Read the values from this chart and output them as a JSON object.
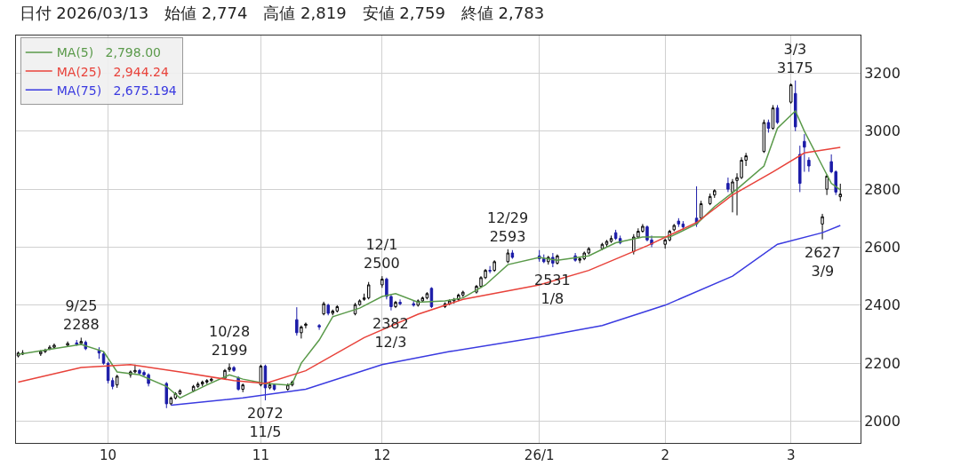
{
  "chart_data": {
    "type": "candlestick",
    "title": "日付 2026/03/13　始値 2,774　高値 2,819　安値 2,759　終値 2,783",
    "x": [
      "2025-09-11",
      "2025-09-12",
      "2025-09-16",
      "2025-09-17",
      "2025-09-18",
      "2025-09-19",
      "2025-09-22",
      "2025-09-24",
      "2025-09-25",
      "2025-09-26",
      "2025-09-29",
      "2025-09-30",
      "2025-10-01",
      "2025-10-02",
      "2025-10-03",
      "2025-10-06",
      "2025-10-07",
      "2025-10-08",
      "2025-10-09",
      "2025-10-10",
      "2025-10-14",
      "2025-10-15",
      "2025-10-16",
      "2025-10-17",
      "2025-10-20",
      "2025-10-21",
      "2025-10-22",
      "2025-10-23",
      "2025-10-24",
      "2025-10-27",
      "2025-10-28",
      "2025-10-29",
      "2025-10-30",
      "2025-10-31",
      "2025-11-04",
      "2025-11-05",
      "2025-11-06",
      "2025-11-07",
      "2025-11-10",
      "2025-11-11",
      "2025-11-12",
      "2025-11-13",
      "2025-11-14",
      "2025-11-17",
      "2025-11-18",
      "2025-11-19",
      "2025-11-20",
      "2025-11-21",
      "2025-11-25",
      "2025-11-26",
      "2025-11-27",
      "2025-11-28",
      "2025-12-01",
      "2025-12-02",
      "2025-12-03",
      "2025-12-04",
      "2025-12-05",
      "2025-12-08",
      "2025-12-09",
      "2025-12-10",
      "2025-12-11",
      "2025-12-12",
      "2025-12-15",
      "2025-12-16",
      "2025-12-17",
      "2025-12-18",
      "2025-12-19",
      "2025-12-22",
      "2025-12-23",
      "2025-12-24",
      "2025-12-25",
      "2025-12-26",
      "2025-12-29",
      "2025-12-30",
      "2026-01-05",
      "2026-01-06",
      "2026-01-07",
      "2026-01-08",
      "2026-01-09",
      "2026-01-13",
      "2026-01-14",
      "2026-01-15",
      "2026-01-16",
      "2026-01-19",
      "2026-01-20",
      "2026-01-21",
      "2026-01-22",
      "2026-01-23",
      "2026-01-26",
      "2026-01-27",
      "2026-01-28",
      "2026-01-29",
      "2026-01-30",
      "2026-02-02",
      "2026-02-03",
      "2026-02-04",
      "2026-02-05",
      "2026-02-06",
      "2026-02-09",
      "2026-02-10",
      "2026-02-12",
      "2026-02-13",
      "2026-02-16",
      "2026-02-17",
      "2026-02-18",
      "2026-02-19",
      "2026-02-20",
      "2026-02-24",
      "2026-02-25",
      "2026-02-26",
      "2026-02-27",
      "2026-03-02",
      "2026-03-03",
      "2026-03-04",
      "2026-03-05",
      "2026-03-06",
      "2026-03-09",
      "2026-03-10",
      "2026-03-11",
      "2026-03-12",
      "2026-03-13"
    ],
    "ohlc": [
      [
        2225,
        2240,
        2220,
        2235
      ],
      [
        2235,
        2245,
        2228,
        2232
      ],
      [
        2232,
        2245,
        2225,
        2240
      ],
      [
        2240,
        2250,
        2235,
        2245
      ],
      [
        2248,
        2262,
        2245,
        2255
      ],
      [
        2255,
        2268,
        2250,
        2262
      ],
      [
        2262,
        2275,
        2258,
        2268
      ],
      [
        2270,
        2280,
        2260,
        2265
      ],
      [
        2268,
        2288,
        2262,
        2275
      ],
      [
        2272,
        2278,
        2245,
        2250
      ],
      [
        2245,
        2255,
        2215,
        2235
      ],
      [
        2232,
        2240,
        2195,
        2200
      ],
      [
        2200,
        2205,
        2130,
        2140
      ],
      [
        2140,
        2150,
        2110,
        2120
      ],
      [
        2125,
        2160,
        2115,
        2155
      ],
      [
        2160,
        2175,
        2150,
        2170
      ],
      [
        2170,
        2195,
        2165,
        2175
      ],
      [
        2175,
        2180,
        2160,
        2165
      ],
      [
        2168,
        2175,
        2155,
        2160
      ],
      [
        2160,
        2165,
        2120,
        2130
      ],
      [
        2130,
        2135,
        2045,
        2060
      ],
      [
        2060,
        2085,
        2055,
        2080
      ],
      [
        2080,
        2100,
        2075,
        2095
      ],
      [
        2095,
        2110,
        2090,
        2105
      ],
      [
        2105,
        2125,
        2100,
        2120
      ],
      [
        2120,
        2135,
        2115,
        2128
      ],
      [
        2128,
        2140,
        2120,
        2135
      ],
      [
        2135,
        2145,
        2128,
        2140
      ],
      [
        2140,
        2150,
        2135,
        2145
      ],
      [
        2148,
        2180,
        2145,
        2175
      ],
      [
        2178,
        2199,
        2170,
        2185
      ],
      [
        2185,
        2190,
        2170,
        2175
      ],
      [
        2150,
        2155,
        2105,
        2110
      ],
      [
        2110,
        2130,
        2100,
        2125
      ],
      [
        2125,
        2195,
        2120,
        2190
      ],
      [
        2190,
        2195,
        2072,
        2115
      ],
      [
        2115,
        2135,
        2110,
        2125
      ],
      [
        2125,
        2130,
        2105,
        2110
      ],
      [
        2110,
        2130,
        2105,
        2125
      ],
      [
        2125,
        2140,
        2120,
        2135
      ],
      [
        2350,
        2393,
        2295,
        2305
      ],
      [
        2305,
        2330,
        2285,
        2325
      ],
      [
        2330,
        2340,
        2320,
        2335
      ],
      [
        2330,
        2335,
        2315,
        2325
      ],
      [
        2370,
        2412,
        2365,
        2405
      ],
      [
        2400,
        2405,
        2365,
        2372
      ],
      [
        2372,
        2385,
        2365,
        2380
      ],
      [
        2380,
        2400,
        2375,
        2395
      ],
      [
        2370,
        2408,
        2365,
        2402
      ],
      [
        2402,
        2420,
        2398,
        2415
      ],
      [
        2420,
        2440,
        2415,
        2425
      ],
      [
        2425,
        2480,
        2420,
        2470
      ],
      [
        2470,
        2500,
        2460,
        2490
      ],
      [
        2490,
        2495,
        2420,
        2430
      ],
      [
        2430,
        2435,
        2382,
        2395
      ],
      [
        2395,
        2415,
        2390,
        2410
      ],
      [
        2410,
        2420,
        2400,
        2405
      ],
      [
        2405,
        2415,
        2395,
        2400
      ],
      [
        2400,
        2420,
        2395,
        2415
      ],
      [
        2415,
        2430,
        2410,
        2425
      ],
      [
        2425,
        2445,
        2420,
        2440
      ],
      [
        2458,
        2462,
        2390,
        2395
      ],
      [
        2395,
        2410,
        2390,
        2405
      ],
      [
        2405,
        2420,
        2400,
        2415
      ],
      [
        2415,
        2425,
        2405,
        2420
      ],
      [
        2420,
        2440,
        2415,
        2435
      ],
      [
        2435,
        2450,
        2428,
        2445
      ],
      [
        2445,
        2470,
        2440,
        2465
      ],
      [
        2465,
        2500,
        2460,
        2495
      ],
      [
        2495,
        2525,
        2490,
        2520
      ],
      [
        2520,
        2535,
        2510,
        2518
      ],
      [
        2520,
        2555,
        2515,
        2550
      ],
      [
        2550,
        2593,
        2545,
        2580
      ],
      [
        2580,
        2590,
        2560,
        2565
      ],
      [
        2570,
        2590,
        2550,
        2560
      ],
      [
        2560,
        2575,
        2545,
        2550
      ],
      [
        2550,
        2570,
        2540,
        2565
      ],
      [
        2565,
        2580,
        2531,
        2545
      ],
      [
        2545,
        2575,
        2540,
        2570
      ],
      [
        2570,
        2580,
        2550,
        2555
      ],
      [
        2555,
        2565,
        2545,
        2560
      ],
      [
        2560,
        2585,
        2555,
        2580
      ],
      [
        2580,
        2600,
        2575,
        2595
      ],
      [
        2595,
        2615,
        2590,
        2610
      ],
      [
        2610,
        2625,
        2600,
        2620
      ],
      [
        2620,
        2640,
        2615,
        2630
      ],
      [
        2650,
        2660,
        2625,
        2630
      ],
      [
        2630,
        2640,
        2610,
        2615
      ],
      [
        2585,
        2645,
        2575,
        2635
      ],
      [
        2635,
        2665,
        2630,
        2655
      ],
      [
        2655,
        2680,
        2650,
        2672
      ],
      [
        2670,
        2675,
        2620,
        2625
      ],
      [
        2625,
        2640,
        2600,
        2610
      ],
      [
        2610,
        2630,
        2595,
        2625
      ],
      [
        2625,
        2660,
        2620,
        2655
      ],
      [
        2660,
        2680,
        2655,
        2675
      ],
      [
        2690,
        2700,
        2670,
        2680
      ],
      [
        2680,
        2690,
        2660,
        2670
      ],
      [
        2700,
        2810,
        2670,
        2680
      ],
      [
        2700,
        2760,
        2695,
        2750
      ],
      [
        2750,
        2785,
        2745,
        2775
      ],
      [
        2780,
        2800,
        2770,
        2795
      ],
      [
        2820,
        2840,
        2790,
        2800
      ],
      [
        2790,
        2835,
        2720,
        2825
      ],
      [
        2830,
        2855,
        2710,
        2840
      ],
      [
        2840,
        2910,
        2835,
        2900
      ],
      [
        2900,
        2925,
        2880,
        2915
      ],
      [
        2930,
        3040,
        2925,
        3030
      ],
      [
        3030,
        3040,
        2995,
        3010
      ],
      [
        3010,
        3090,
        3005,
        3080
      ],
      [
        3080,
        3090,
        3025,
        3030
      ],
      [
        3100,
        3165,
        3095,
        3160
      ],
      [
        3130,
        3175,
        3000,
        3015
      ],
      [
        2920,
        2950,
        2790,
        2820
      ],
      [
        2965,
        2990,
        2860,
        2945
      ],
      [
        2900,
        2910,
        2860,
        2880
      ],
      [
        2680,
        2715,
        2627,
        2705
      ],
      [
        2800,
        2850,
        2780,
        2845
      ],
      [
        2895,
        2920,
        2855,
        2860
      ],
      [
        2860,
        2865,
        2780,
        2790
      ],
      [
        2774,
        2819,
        2759,
        2783
      ]
    ],
    "colors": [
      "#000000",
      "#000000",
      "#000000",
      "#000000",
      "#000000",
      "#000000",
      "#000000",
      "#1c1ca8",
      "#000000",
      "#1c1ca8",
      "#1c1ca8",
      "#1c1ca8",
      "#1c1ca8",
      "#1c1ca8",
      "#000000",
      "#000000",
      "#000000",
      "#1c1ca8",
      "#1c1ca8",
      "#1c1ca8",
      "#1c1ca8",
      "#000000",
      "#000000",
      "#000000",
      "#000000",
      "#000000",
      "#000000",
      "#000000",
      "#000000",
      "#000000",
      "#000000",
      "#1c1ca8",
      "#1c1ca8",
      "#000000",
      "#000000",
      "#1c1ca8",
      "#000000",
      "#1c1ca8",
      "#000000",
      "#000000",
      "#1c1ca8",
      "#000000",
      "#000000",
      "#1c1ca8",
      "#000000",
      "#1c1ca8",
      "#000000",
      "#000000",
      "#000000",
      "#000000",
      "#000000",
      "#000000",
      "#000000",
      "#1c1ca8",
      "#1c1ca8",
      "#000000",
      "#1c1ca8",
      "#1c1ca8",
      "#000000",
      "#000000",
      "#000000",
      "#1c1ca8",
      "#000000",
      "#000000",
      "#000000",
      "#000000",
      "#000000",
      "#000000",
      "#000000",
      "#000000",
      "#1c1ca8",
      "#000000",
      "#000000",
      "#1c1ca8",
      "#1c1ca8",
      "#1c1ca8",
      "#000000",
      "#1c1ca8",
      "#000000",
      "#1c1ca8",
      "#000000",
      "#000000",
      "#000000",
      "#000000",
      "#000000",
      "#000000",
      "#1c1ca8",
      "#1c1ca8",
      "#000000",
      "#000000",
      "#000000",
      "#1c1ca8",
      "#1c1ca8",
      "#000000",
      "#000000",
      "#000000",
      "#1c1ca8",
      "#1c1ca8",
      "#1c1ca8",
      "#000000",
      "#000000",
      "#000000",
      "#1c1ca8",
      "#000000",
      "#000000",
      "#000000",
      "#000000",
      "#000000",
      "#1c1ca8",
      "#000000",
      "#1c1ca8",
      "#000000",
      "#1c1ca8",
      "#1c1ca8",
      "#1c1ca8",
      "#1c1ca8",
      "#000000",
      "#000000",
      "#1c1ca8",
      "#1c1ca8",
      "#000000"
    ],
    "series": [
      {
        "name": "MA(5)",
        "type": "line",
        "color": "#5a9a4a",
        "x": [
          "2025-09-11",
          "2025-09-19",
          "2025-09-25",
          "2025-09-30",
          "2025-10-03",
          "2025-10-08",
          "2025-10-14",
          "2025-10-17",
          "2025-10-23",
          "2025-10-28",
          "2025-10-31",
          "2025-11-05",
          "2025-11-10",
          "2025-11-11",
          "2025-11-13",
          "2025-11-17",
          "2025-11-20",
          "2025-11-26",
          "2025-12-01",
          "2025-12-04",
          "2025-12-09",
          "2025-12-15",
          "2025-12-19",
          "2025-12-24",
          "2025-12-29",
          "2026-01-05",
          "2026-01-09",
          "2026-01-16",
          "2026-01-22",
          "2026-01-28",
          "2026-02-03",
          "2026-02-09",
          "2026-02-13",
          "2026-02-18",
          "2026-02-24",
          "2026-02-27",
          "2026-03-03",
          "2026-03-05",
          "2026-03-09",
          "2026-03-11",
          "2026-03-13"
        ],
        "values": [
          2230,
          2250,
          2265,
          2240,
          2170,
          2160,
          2120,
          2080,
          2125,
          2160,
          2145,
          2130,
          2125,
          2130,
          2200,
          2280,
          2360,
          2390,
          2430,
          2440,
          2410,
          2415,
          2425,
          2470,
          2540,
          2565,
          2555,
          2570,
          2615,
          2635,
          2635,
          2680,
          2740,
          2800,
          2880,
          3010,
          3070,
          3000,
          2880,
          2820,
          2798
        ]
      },
      {
        "name": "MA(25)",
        "type": "line",
        "color": "#e8423a",
        "x": [
          "2025-09-11",
          "2025-09-25",
          "2025-10-06",
          "2025-10-17",
          "2025-10-29",
          "2025-11-05",
          "2025-11-14",
          "2025-11-27",
          "2025-12-09",
          "2025-12-19",
          "2026-01-05",
          "2026-01-16",
          "2026-01-29",
          "2026-02-09",
          "2026-02-17",
          "2026-02-26",
          "2026-03-05",
          "2026-03-13"
        ],
        "values": [
          2135,
          2185,
          2195,
          2170,
          2140,
          2130,
          2174,
          2288,
          2369,
          2420,
          2470,
          2520,
          2605,
          2685,
          2780,
          2860,
          2925,
          2944
        ]
      },
      {
        "name": "MA(75)",
        "type": "line",
        "color": "#3a3ae0",
        "x": [
          "2025-10-15",
          "2025-10-31",
          "2025-11-14",
          "2025-12-01",
          "2025-12-16",
          "2026-01-05",
          "2026-01-19",
          "2026-02-02",
          "2026-02-17",
          "2026-02-27",
          "2026-03-09",
          "2026-03-13"
        ],
        "values": [
          2055,
          2080,
          2110,
          2195,
          2240,
          2290,
          2330,
          2400,
          2500,
          2610,
          2650,
          2675
        ]
      }
    ],
    "annotations": [
      {
        "text": "9/25\n2288",
        "x": "2025-09-25",
        "y": 2288
      },
      {
        "text": "10/28\n2199",
        "x": "2025-10-28",
        "y": 2199
      },
      {
        "text": "2072\n11/5",
        "x": "2025-11-05",
        "y": 2072
      },
      {
        "text": "12/1\n2500",
        "x": "2025-12-01",
        "y": 2500
      },
      {
        "text": "2382\n12/3",
        "x": "2025-12-03",
        "y": 2382
      },
      {
        "text": "12/29\n2593",
        "x": "2025-12-29",
        "y": 2593
      },
      {
        "text": "2531\n1/8",
        "x": "2026-01-08",
        "y": 2531
      },
      {
        "text": "3/3\n3175",
        "x": "2026-03-03",
        "y": 3175
      },
      {
        "text": "2627\n3/9",
        "x": "2026-03-09",
        "y": 2627
      },
      "2,798.00",
      "2,944.24",
      "2,675.194"
    ],
    "xlim": [
      "2025-09-10T12:00",
      "2026-03-17T12:00"
    ],
    "xticks": [
      {
        "value": "2025-10-01",
        "label": "10"
      },
      {
        "value": "2025-11-04",
        "label": "11"
      },
      {
        "value": "2025-12-01",
        "label": "12"
      },
      {
        "value": "2026-01-05",
        "label": "26/1"
      },
      {
        "value": "2026-02-02",
        "label": "2"
      },
      {
        "value": "2026-03-02",
        "label": "3"
      }
    ],
    "ylim": [
      1925,
      3330
    ],
    "yticks": [
      2000,
      2200,
      2400,
      2600,
      2800,
      3000,
      3200
    ],
    "grid": true,
    "legend": "top left"
  }
}
